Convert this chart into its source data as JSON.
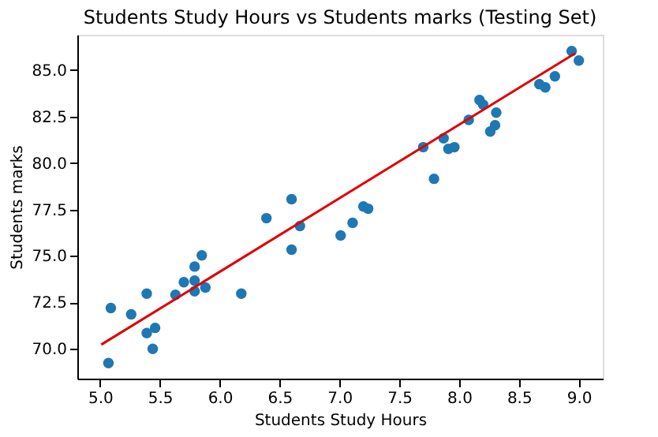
{
  "chart_data": {
    "type": "scatter",
    "title": "Students Study Hours vs Students marks (Testing Set)",
    "xlabel": "Students Study Hours",
    "ylabel": "Students marks",
    "xlim": [
      4.81,
      9.2
    ],
    "ylim": [
      68.4,
      86.9
    ],
    "xticks": [
      {
        "value": 5,
        "label": "5.0"
      },
      {
        "value": 5.5,
        "label": "5.5"
      },
      {
        "value": 6,
        "label": "6.0"
      },
      {
        "value": 6.5,
        "label": "6.5"
      },
      {
        "value": 7,
        "label": "7.0"
      },
      {
        "value": 7.5,
        "label": "7.5"
      },
      {
        "value": 8,
        "label": "8.0"
      },
      {
        "value": 8.5,
        "label": "8.5"
      },
      {
        "value": 9,
        "label": "9.0"
      }
    ],
    "yticks": [
      {
        "value": 70,
        "label": "70.0"
      },
      {
        "value": 72.5,
        "label": "72.5"
      },
      {
        "value": 75,
        "label": "75.0"
      },
      {
        "value": 77.5,
        "label": "77.5"
      },
      {
        "value": 80,
        "label": "80.0"
      },
      {
        "value": 82.5,
        "label": "82.5"
      },
      {
        "value": 85,
        "label": "85.0"
      }
    ],
    "grid": false,
    "marker": "circle",
    "series": [
      {
        "color": "#1f77b4",
        "x": [
          5.07,
          5.09,
          5.26,
          5.39,
          5.39,
          5.46,
          5.44,
          5.63,
          5.7,
          5.79,
          5.79,
          5.79,
          5.85,
          5.88,
          6.18,
          6.39,
          6.6,
          6.6,
          6.67,
          7.01,
          7.11,
          7.2,
          7.24,
          7.7,
          7.79,
          7.87,
          7.91,
          7.96,
          8.08,
          8.17,
          8.2,
          8.31,
          8.3,
          8.26,
          8.67,
          8.72,
          8.8,
          8.94,
          9.0
        ],
        "values": [
          69.24,
          72.2,
          71.86,
          72.97,
          70.85,
          71.13,
          70.0,
          72.91,
          73.59,
          74.43,
          73.67,
          73.1,
          75.03,
          73.3,
          72.97,
          77.03,
          78.05,
          75.34,
          76.61,
          76.1,
          76.78,
          77.66,
          77.54,
          80.85,
          79.15,
          81.33,
          80.76,
          80.85,
          82.32,
          83.39,
          83.14,
          82.71,
          82.03,
          81.69,
          84.24,
          84.07,
          84.66,
          86.02,
          85.51
        ]
      },
      {
        "type": "line",
        "color": "#e00000",
        "x": [
          5.01,
          8.97
        ],
        "values": [
          70.23,
          85.9
        ],
        "marker": "none",
        "line_style": "solid"
      }
    ]
  }
}
